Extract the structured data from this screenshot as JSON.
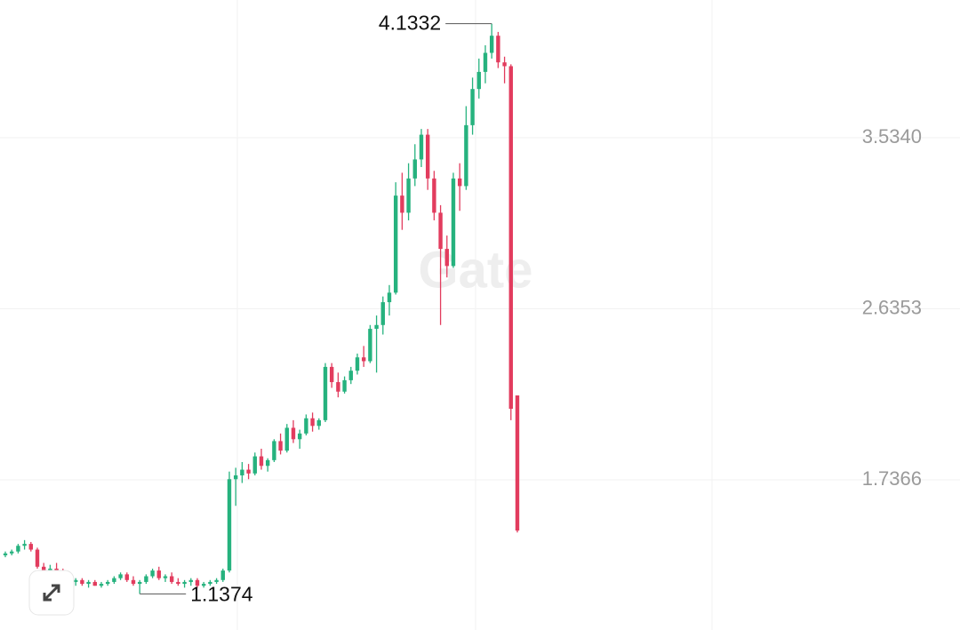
{
  "chart_data": {
    "type": "candlestick",
    "watermark": "Gate",
    "up_color": "#26b27e",
    "down_color": "#e23c5e",
    "ylim": [
      0.9476,
      4.2577
    ],
    "yticks": [
      {
        "value": 3.534,
        "label": "3.5340"
      },
      2.6353,
      1.7366
    ],
    "grid": true,
    "max_label": 4.1332,
    "min_label": 1.1374,
    "ohlc": [
      [
        1.34,
        1.36,
        1.33,
        1.35
      ],
      [
        1.35,
        1.37,
        1.34,
        1.36
      ],
      [
        1.36,
        1.4,
        1.35,
        1.39
      ],
      [
        1.39,
        1.42,
        1.37,
        1.4
      ],
      [
        1.4,
        1.41,
        1.36,
        1.37
      ],
      [
        1.37,
        1.38,
        1.27,
        1.28
      ],
      [
        1.28,
        1.3,
        1.21,
        1.23
      ],
      [
        1.23,
        1.29,
        1.22,
        1.27
      ],
      [
        1.27,
        1.3,
        1.24,
        1.25
      ],
      [
        1.25,
        1.27,
        1.21,
        1.22
      ],
      [
        1.22,
        1.24,
        1.19,
        1.2
      ],
      [
        1.2,
        1.22,
        1.18,
        1.21
      ],
      [
        1.21,
        1.22,
        1.18,
        1.19
      ],
      [
        1.19,
        1.21,
        1.17,
        1.2
      ],
      [
        1.2,
        1.21,
        1.18,
        1.18
      ],
      [
        1.18,
        1.2,
        1.17,
        1.19
      ],
      [
        1.19,
        1.21,
        1.18,
        1.2
      ],
      [
        1.2,
        1.23,
        1.19,
        1.22
      ],
      [
        1.22,
        1.25,
        1.21,
        1.24
      ],
      [
        1.24,
        1.25,
        1.2,
        1.21
      ],
      [
        1.21,
        1.23,
        1.18,
        1.19
      ],
      [
        1.19,
        1.21,
        1.1374,
        1.2
      ],
      [
        1.2,
        1.24,
        1.19,
        1.23
      ],
      [
        1.23,
        1.27,
        1.22,
        1.26
      ],
      [
        1.26,
        1.28,
        1.21,
        1.22
      ],
      [
        1.22,
        1.24,
        1.2,
        1.23
      ],
      [
        1.23,
        1.25,
        1.19,
        1.2
      ],
      [
        1.2,
        1.22,
        1.18,
        1.19
      ],
      [
        1.19,
        1.21,
        1.17,
        1.2
      ],
      [
        1.2,
        1.22,
        1.18,
        1.21
      ],
      [
        1.21,
        1.22,
        1.17,
        1.18
      ],
      [
        1.18,
        1.2,
        1.17,
        1.19
      ],
      [
        1.19,
        1.21,
        1.18,
        1.2
      ],
      [
        1.2,
        1.22,
        1.19,
        1.21
      ],
      [
        1.21,
        1.27,
        1.2,
        1.26
      ],
      [
        1.26,
        1.78,
        1.25,
        1.74
      ],
      [
        1.74,
        1.8,
        1.6,
        1.76
      ],
      [
        1.76,
        1.83,
        1.72,
        1.79
      ],
      [
        1.79,
        1.82,
        1.74,
        1.77
      ],
      [
        1.77,
        1.88,
        1.76,
        1.86
      ],
      [
        1.86,
        1.9,
        1.79,
        1.81
      ],
      [
        1.81,
        1.85,
        1.78,
        1.84
      ],
      [
        1.84,
        1.95,
        1.83,
        1.94
      ],
      [
        1.94,
        1.98,
        1.87,
        1.89
      ],
      [
        1.89,
        2.03,
        1.88,
        2.01
      ],
      [
        2.01,
        2.05,
        1.93,
        1.95
      ],
      [
        1.95,
        2.0,
        1.9,
        1.98
      ],
      [
        1.98,
        2.08,
        1.97,
        2.06
      ],
      [
        2.06,
        2.09,
        1.99,
        2.02
      ],
      [
        2.02,
        2.06,
        2.0,
        2.05
      ],
      [
        2.05,
        2.35,
        2.04,
        2.33
      ],
      [
        2.33,
        2.35,
        2.22,
        2.25
      ],
      [
        2.25,
        2.3,
        2.17,
        2.2
      ],
      [
        2.2,
        2.28,
        2.19,
        2.26
      ],
      [
        2.26,
        2.33,
        2.24,
        2.31
      ],
      [
        2.31,
        2.4,
        2.29,
        2.38
      ],
      [
        2.38,
        2.44,
        2.33,
        2.36
      ],
      [
        2.36,
        2.55,
        2.35,
        2.53
      ],
      [
        2.53,
        2.6,
        2.3,
        2.55
      ],
      [
        2.55,
        2.7,
        2.5,
        2.67
      ],
      [
        2.67,
        2.76,
        2.6,
        2.72
      ],
      [
        2.72,
        3.3,
        2.71,
        3.23
      ],
      [
        3.23,
        3.35,
        3.05,
        3.14
      ],
      [
        3.14,
        3.4,
        3.1,
        3.32
      ],
      [
        3.32,
        3.5,
        3.28,
        3.42
      ],
      [
        3.42,
        3.58,
        3.38,
        3.55
      ],
      [
        3.55,
        3.58,
        3.26,
        3.32
      ],
      [
        3.32,
        3.36,
        3.1,
        3.14
      ],
      [
        3.14,
        3.18,
        2.55,
        2.95
      ],
      [
        2.95,
        3.02,
        2.8,
        2.86
      ],
      [
        2.86,
        3.35,
        2.85,
        3.32
      ],
      [
        3.32,
        3.4,
        3.15,
        3.28
      ],
      [
        3.28,
        3.7,
        3.26,
        3.6
      ],
      [
        3.6,
        3.85,
        3.55,
        3.79
      ],
      [
        3.79,
        3.95,
        3.74,
        3.88
      ],
      [
        3.88,
        4.02,
        3.82,
        3.98
      ],
      [
        3.98,
        4.1332,
        3.95,
        4.07
      ],
      [
        4.07,
        4.09,
        3.9,
        3.93
      ],
      [
        3.93,
        3.96,
        3.82,
        3.91
      ],
      [
        3.91,
        3.92,
        2.05,
        2.11
      ],
      [
        2.18,
        2.18,
        1.46,
        1.47
      ]
    ]
  }
}
